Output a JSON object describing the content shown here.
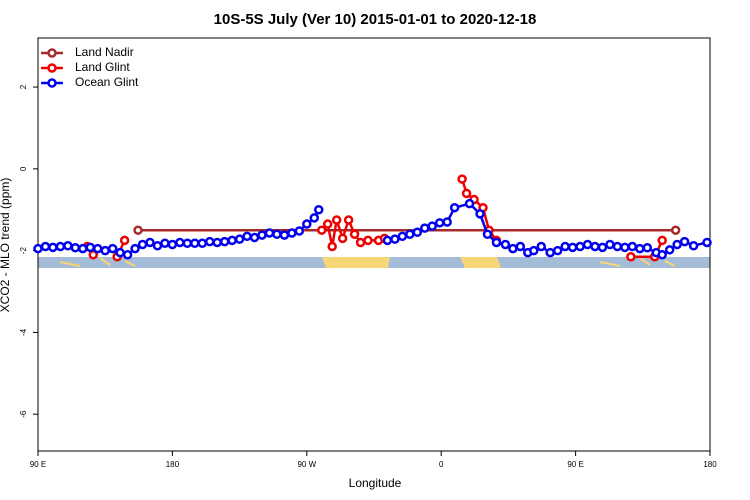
{
  "chart_data": {
    "type": "line",
    "title": "10S-5S July (Ver 10)   2015-01-01 to 2020-12-18",
    "xlabel": "Longitude",
    "ylabel": "XCO2 - MLO trend (ppm)",
    "xlim": [
      90,
      540
    ],
    "ylim": [
      -6.9,
      3.2
    ],
    "xticks": [
      {
        "value": 90,
        "label": "90 E"
      },
      {
        "value": 180,
        "label": "180"
      },
      {
        "value": 270,
        "label": "90 W"
      },
      {
        "value": 360,
        "label": "0"
      },
      {
        "value": 450,
        "label": "90 E"
      },
      {
        "value": 540,
        "label": "180"
      }
    ],
    "yticks": [
      2,
      0,
      -2,
      -4,
      -6
    ],
    "legend": "top-left",
    "series": [
      {
        "name": "Land Nadir",
        "color": "#a52a2a",
        "x": [
          157,
          517
        ],
        "values": [
          -1.5,
          -1.5
        ]
      },
      {
        "name": "Land Glint",
        "color": "#ee0000",
        "x": [
          123,
          127,
          130,
          143,
          148,
          150,
          280,
          284,
          287,
          290,
          294,
          298,
          302,
          306,
          311,
          318,
          322,
          330,
          374,
          377,
          382,
          388,
          392,
          397,
          400,
          487,
          503,
          508
        ],
        "values": [
          -1.9,
          -2.1,
          null,
          -2.15,
          -1.75,
          null,
          -1.5,
          -1.35,
          -1.9,
          -1.25,
          -1.7,
          -1.25,
          -1.6,
          -1.8,
          -1.75,
          -1.75,
          -1.7,
          null,
          -0.25,
          -0.6,
          -0.75,
          -0.95,
          -1.5,
          -1.75,
          null,
          -2.15,
          -2.15,
          -1.75
        ]
      },
      {
        "name": "Ocean Glint",
        "color": "#0000ee",
        "x": [
          90,
          95,
          100,
          105,
          110,
          115,
          120,
          125,
          130,
          135,
          140,
          145,
          150,
          155,
          160,
          165,
          170,
          175,
          180,
          185,
          190,
          195,
          200,
          205,
          210,
          215,
          220,
          225,
          230,
          235,
          240,
          245,
          250,
          255,
          260,
          265,
          270,
          275,
          278,
          300,
          324,
          329,
          334,
          339,
          344,
          349,
          354,
          359,
          364,
          369,
          379,
          386,
          391,
          397,
          403,
          408,
          413,
          418,
          422,
          427,
          433,
          438,
          443,
          448,
          453,
          458,
          463,
          468,
          473,
          478,
          483,
          488,
          493,
          498,
          504,
          508,
          513,
          518,
          523,
          529,
          538
        ],
        "values": [
          -1.95,
          -1.9,
          -1.92,
          -1.9,
          -1.88,
          -1.93,
          -1.95,
          -1.92,
          -1.95,
          -2.0,
          -1.95,
          -2.05,
          -2.1,
          -1.95,
          -1.85,
          -1.8,
          -1.88,
          -1.82,
          -1.85,
          -1.8,
          -1.82,
          -1.82,
          -1.82,
          -1.78,
          -1.8,
          -1.78,
          -1.75,
          -1.72,
          -1.65,
          -1.68,
          -1.62,
          -1.57,
          -1.6,
          -1.62,
          -1.57,
          -1.52,
          -1.35,
          -1.2,
          -1.0,
          null,
          -1.75,
          -1.72,
          -1.65,
          -1.6,
          -1.55,
          -1.45,
          -1.4,
          -1.32,
          -1.3,
          -0.95,
          -0.85,
          -1.1,
          -1.6,
          -1.8,
          -1.85,
          -1.95,
          -1.9,
          -2.05,
          -2.0,
          -1.9,
          -2.05,
          -2.0,
          -1.9,
          -1.92,
          -1.9,
          -1.85,
          -1.9,
          -1.92,
          -1.85,
          -1.9,
          -1.92,
          -1.9,
          -1.95,
          -1.93,
          -2.05,
          -2.1,
          -1.98,
          -1.85,
          -1.78,
          -1.88,
          -1.8
        ]
      }
    ]
  }
}
